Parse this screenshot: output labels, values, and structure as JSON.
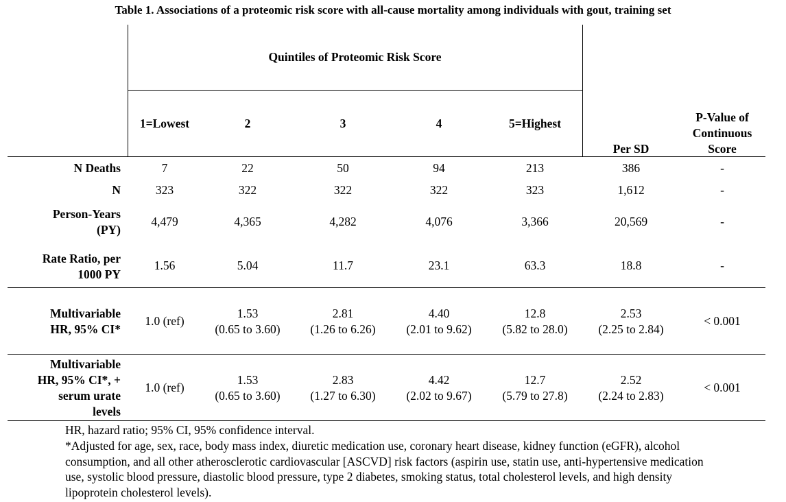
{
  "title": "Table 1. Associations of a proteomic risk score with all-cause mortality among individuals with gout, training set",
  "header": {
    "group_label": "Quintiles of Proteomic Risk Score",
    "q1": "1=Lowest",
    "q2": "2",
    "q3": "3",
    "q4": "4",
    "q5": "5=Highest",
    "per_sd": "Per SD",
    "pvalue": [
      "P-Value of",
      "Continuous",
      "Score"
    ]
  },
  "rows": {
    "deaths": {
      "label": "N Deaths",
      "values": [
        "7",
        "22",
        "50",
        "94",
        "213",
        "386",
        "-"
      ]
    },
    "n": {
      "label": "N",
      "values": [
        "323",
        "322",
        "322",
        "322",
        "323",
        "1,612",
        "-"
      ]
    },
    "py": {
      "label": [
        "Person-Years",
        "(PY)"
      ],
      "values": [
        "4,479",
        "4,365",
        "4,282",
        "4,076",
        "3,366",
        "20,569",
        "-"
      ]
    },
    "rate": {
      "label": [
        "Rate Ratio, per",
        "1000 PY"
      ],
      "values": [
        "1.56",
        "5.04",
        "11.7",
        "23.1",
        "63.3",
        "18.8",
        "-"
      ]
    },
    "hr1": {
      "label": [
        "Multivariable",
        "HR, 95% CI*"
      ],
      "ref": "1.0 (ref)",
      "est": [
        "1.53",
        "2.81",
        "4.40",
        "12.8",
        "2.53"
      ],
      "ci": [
        "(0.65 to 3.60)",
        "(1.26 to 6.26)",
        "(2.01 to 9.62)",
        "(5.82 to 28.0)",
        "(2.25 to 2.84)"
      ],
      "p": "< 0.001"
    },
    "hr2": {
      "label": [
        "Multivariable",
        "HR, 95% CI*, +",
        "serum urate",
        "levels"
      ],
      "ref": "1.0 (ref)",
      "est": [
        "1.53",
        "2.83",
        "4.42",
        "12.7",
        "2.52"
      ],
      "ci": [
        "(0.65 to 3.60)",
        "(1.27 to 6.30)",
        "(2.02 to 9.67)",
        "(5.79 to 27.8)",
        "(2.24 to 2.83)"
      ],
      "p": "< 0.001"
    }
  },
  "footnotes": [
    "HR, hazard ratio; 95% CI, 95% confidence interval.",
    "*Adjusted for age, sex, race, body mass index, diuretic medication use, coronary heart disease, kidney function (eGFR), alcohol consumption, and all other atherosclerotic cardiovascular [ASCVD] risk factors (aspirin use, statin use, anti-hypertensive medication use, systolic blood pressure, diastolic blood pressure, type 2 diabetes, smoking status, total cholesterol levels, and high density lipoprotein cholesterol levels)."
  ]
}
